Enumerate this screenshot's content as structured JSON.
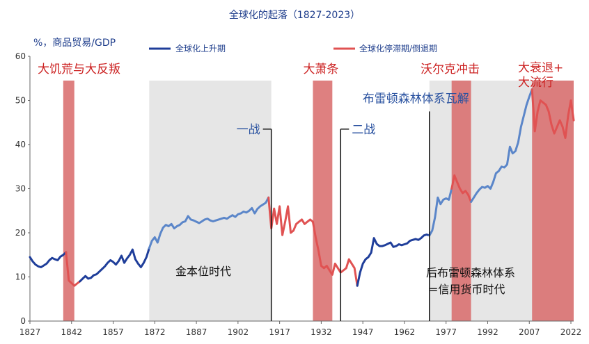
{
  "chart_data": {
    "type": "line",
    "title": "全球化的起落（1827-2023）",
    "ylabel": "%，商品贸易/GDP",
    "ylim": [
      0,
      60
    ],
    "yticks": [
      0,
      10,
      20,
      30,
      40,
      50,
      60
    ],
    "xlim": [
      1827,
      2023
    ],
    "xticks": [
      1827,
      1842,
      1857,
      1872,
      1887,
      1902,
      1917,
      1932,
      1947,
      1962,
      1977,
      1992,
      2007,
      2022
    ],
    "legend": {
      "placement": "top",
      "entries": [
        {
          "name": "全球化上升期",
          "color": "#1f3e9a"
        },
        {
          "name": "全球化停滞期/倒退期",
          "color": "#e05252"
        }
      ]
    },
    "gray_regions": [
      {
        "from": 1870,
        "to": 1914,
        "label": "金本位时代"
      },
      {
        "from": 1971,
        "to": 2023,
        "label_lines": [
          "后布雷顿森林体系",
          "=信用货币时代"
        ]
      }
    ],
    "red_regions": [
      {
        "from": 1839,
        "to": 1843,
        "label": "大饥荒与大反叛"
      },
      {
        "from": 1929,
        "to": 1936,
        "label": "大萧条"
      },
      {
        "from": 1979,
        "to": 1986,
        "label": "沃尔克冲击"
      },
      {
        "from": 2008,
        "to": 2023,
        "label_lines": [
          "大衰退+",
          "大流行"
        ]
      }
    ],
    "markers": [
      {
        "year": 1914,
        "label": "一战",
        "side": "left"
      },
      {
        "year": 1939,
        "label": "二战",
        "side": "right"
      },
      {
        "year": 1971,
        "label": "布雷顿森林体系瓦解",
        "side": "above"
      }
    ],
    "series": [
      {
        "style": "rise-dark",
        "color": "#1f3e9a",
        "points": [
          [
            1827,
            14.5
          ],
          [
            1828,
            13.5
          ],
          [
            1829,
            12.8
          ],
          [
            1830,
            12.4
          ],
          [
            1831,
            12.2
          ],
          [
            1832,
            12.6
          ],
          [
            1833,
            13.0
          ],
          [
            1834,
            13.8
          ],
          [
            1835,
            14.3
          ],
          [
            1836,
            14.0
          ],
          [
            1837,
            13.8
          ],
          [
            1838,
            14.6
          ],
          [
            1839,
            15.0
          ],
          [
            1840,
            15.6
          ]
        ]
      },
      {
        "style": "stall",
        "color": "#e05252",
        "points": [
          [
            1840,
            15.6
          ],
          [
            1841,
            9.2
          ],
          [
            1842,
            8.6
          ],
          [
            1843,
            8.0
          ],
          [
            1844,
            8.5
          ],
          [
            1845,
            9.0
          ]
        ]
      },
      {
        "style": "rise-dark",
        "color": "#1f3e9a",
        "points": [
          [
            1845,
            9.0
          ],
          [
            1846,
            9.6
          ],
          [
            1847,
            10.2
          ],
          [
            1848,
            9.6
          ],
          [
            1849,
            9.8
          ],
          [
            1850,
            10.4
          ],
          [
            1851,
            10.6
          ],
          [
            1852,
            11.2
          ],
          [
            1853,
            11.8
          ],
          [
            1854,
            12.4
          ],
          [
            1855,
            13.2
          ],
          [
            1856,
            13.8
          ],
          [
            1857,
            13.4
          ],
          [
            1858,
            12.8
          ],
          [
            1859,
            13.6
          ],
          [
            1860,
            14.8
          ],
          [
            1861,
            13.2
          ],
          [
            1862,
            14.2
          ],
          [
            1863,
            15.0
          ],
          [
            1864,
            16.2
          ],
          [
            1865,
            14.0
          ],
          [
            1866,
            13.0
          ],
          [
            1867,
            12.2
          ],
          [
            1868,
            13.2
          ],
          [
            1869,
            14.5
          ],
          [
            1870,
            16.5
          ]
        ]
      },
      {
        "style": "rise-light",
        "color": "#5b86c9",
        "points": [
          [
            1870,
            16.5
          ],
          [
            1871,
            18.2
          ],
          [
            1872,
            19.0
          ],
          [
            1873,
            17.8
          ],
          [
            1874,
            19.8
          ],
          [
            1875,
            21.2
          ],
          [
            1876,
            21.8
          ],
          [
            1877,
            21.5
          ],
          [
            1878,
            22.0
          ],
          [
            1879,
            21.0
          ],
          [
            1880,
            21.5
          ],
          [
            1881,
            21.8
          ],
          [
            1882,
            22.4
          ],
          [
            1883,
            22.6
          ],
          [
            1884,
            23.8
          ],
          [
            1885,
            23.0
          ],
          [
            1886,
            22.8
          ],
          [
            1887,
            22.5
          ],
          [
            1888,
            22.2
          ],
          [
            1889,
            22.6
          ],
          [
            1890,
            23.0
          ],
          [
            1891,
            23.2
          ],
          [
            1892,
            22.8
          ],
          [
            1893,
            22.6
          ],
          [
            1894,
            22.8
          ],
          [
            1895,
            23.0
          ],
          [
            1896,
            23.2
          ],
          [
            1897,
            23.4
          ],
          [
            1898,
            23.2
          ],
          [
            1899,
            23.6
          ],
          [
            1900,
            24.0
          ],
          [
            1901,
            23.6
          ],
          [
            1902,
            24.2
          ],
          [
            1903,
            24.4
          ],
          [
            1904,
            24.8
          ],
          [
            1905,
            24.6
          ],
          [
            1906,
            25.0
          ],
          [
            1907,
            25.6
          ],
          [
            1908,
            24.4
          ],
          [
            1909,
            25.4
          ],
          [
            1910,
            26.0
          ],
          [
            1911,
            26.4
          ],
          [
            1912,
            26.8
          ],
          [
            1913,
            28.0
          ]
        ]
      },
      {
        "style": "stall",
        "color": "#e05252",
        "points": [
          [
            1913,
            28.0
          ],
          [
            1914,
            21.0
          ],
          [
            1915,
            25.5
          ],
          [
            1916,
            22.0
          ],
          [
            1917,
            26.0
          ],
          [
            1918,
            19.5
          ],
          [
            1919,
            22.5
          ],
          [
            1920,
            26.0
          ],
          [
            1921,
            20.0
          ],
          [
            1922,
            20.5
          ],
          [
            1923,
            22.0
          ],
          [
            1924,
            22.5
          ],
          [
            1925,
            23.0
          ],
          [
            1926,
            22.0
          ],
          [
            1927,
            22.5
          ],
          [
            1928,
            23.0
          ],
          [
            1929,
            22.5
          ],
          [
            1930,
            19.0
          ],
          [
            1931,
            16.0
          ],
          [
            1932,
            12.5
          ],
          [
            1933,
            12.0
          ],
          [
            1934,
            12.5
          ],
          [
            1935,
            11.5
          ],
          [
            1936,
            10.5
          ],
          [
            1937,
            13.0
          ],
          [
            1938,
            12.0
          ],
          [
            1939,
            11.0
          ],
          [
            1940,
            11.5
          ],
          [
            1941,
            12.0
          ],
          [
            1942,
            14.0
          ],
          [
            1943,
            13.0
          ],
          [
            1944,
            12.0
          ],
          [
            1945,
            8.0
          ]
        ]
      },
      {
        "style": "rise-dark",
        "color": "#1f3e9a",
        "points": [
          [
            1945,
            8.0
          ],
          [
            1946,
            11.0
          ],
          [
            1947,
            13.0
          ],
          [
            1948,
            14.0
          ],
          [
            1949,
            14.5
          ],
          [
            1950,
            15.5
          ],
          [
            1951,
            18.8
          ],
          [
            1952,
            17.5
          ],
          [
            1953,
            17.0
          ],
          [
            1954,
            17.0
          ],
          [
            1955,
            17.2
          ],
          [
            1956,
            17.5
          ],
          [
            1957,
            17.8
          ],
          [
            1958,
            16.8
          ],
          [
            1959,
            17.0
          ],
          [
            1960,
            17.4
          ],
          [
            1961,
            17.2
          ],
          [
            1962,
            17.4
          ],
          [
            1963,
            17.6
          ],
          [
            1964,
            18.2
          ],
          [
            1965,
            18.4
          ],
          [
            1966,
            18.6
          ],
          [
            1967,
            18.4
          ],
          [
            1968,
            18.8
          ],
          [
            1969,
            19.4
          ],
          [
            1970,
            19.6
          ],
          [
            1971,
            19.4
          ]
        ]
      },
      {
        "style": "rise-light",
        "color": "#5b86c9",
        "points": [
          [
            1971,
            19.4
          ],
          [
            1972,
            20.5
          ],
          [
            1973,
            23.5
          ],
          [
            1974,
            28.0
          ],
          [
            1975,
            26.5
          ],
          [
            1976,
            27.5
          ],
          [
            1977,
            27.8
          ],
          [
            1978,
            27.5
          ],
          [
            1979,
            30.0
          ]
        ]
      },
      {
        "style": "stall",
        "color": "#e05252",
        "points": [
          [
            1979,
            30.0
          ],
          [
            1980,
            33.0
          ],
          [
            1981,
            31.5
          ],
          [
            1982,
            30.0
          ],
          [
            1983,
            29.0
          ],
          [
            1984,
            29.5
          ],
          [
            1985,
            28.6
          ],
          [
            1986,
            27.0
          ]
        ]
      },
      {
        "style": "rise-light",
        "color": "#5b86c9",
        "points": [
          [
            1986,
            27.0
          ],
          [
            1987,
            28.0
          ],
          [
            1988,
            29.0
          ],
          [
            1989,
            29.8
          ],
          [
            1990,
            30.4
          ],
          [
            1991,
            30.2
          ],
          [
            1992,
            30.6
          ],
          [
            1993,
            30.0
          ],
          [
            1994,
            31.5
          ],
          [
            1995,
            33.5
          ],
          [
            1996,
            34.0
          ],
          [
            1997,
            35.0
          ],
          [
            1998,
            34.8
          ],
          [
            1999,
            35.5
          ],
          [
            2000,
            39.5
          ],
          [
            2001,
            38.0
          ],
          [
            2002,
            38.5
          ],
          [
            2003,
            40.5
          ],
          [
            2004,
            44.0
          ],
          [
            2005,
            46.5
          ],
          [
            2006,
            49.0
          ],
          [
            2007,
            50.8
          ],
          [
            2008,
            52.5
          ]
        ]
      },
      {
        "style": "stall",
        "color": "#e05252",
        "points": [
          [
            2008,
            52.5
          ],
          [
            2009,
            43.0
          ],
          [
            2010,
            47.5
          ],
          [
            2011,
            50.0
          ],
          [
            2012,
            49.5
          ],
          [
            2013,
            49.0
          ],
          [
            2014,
            47.5
          ],
          [
            2015,
            44.5
          ],
          [
            2016,
            42.5
          ],
          [
            2017,
            44.0
          ],
          [
            2018,
            45.5
          ],
          [
            2019,
            44.0
          ],
          [
            2020,
            41.5
          ],
          [
            2021,
            46.5
          ],
          [
            2022,
            50.0
          ],
          [
            2023,
            45.5
          ]
        ]
      }
    ]
  }
}
